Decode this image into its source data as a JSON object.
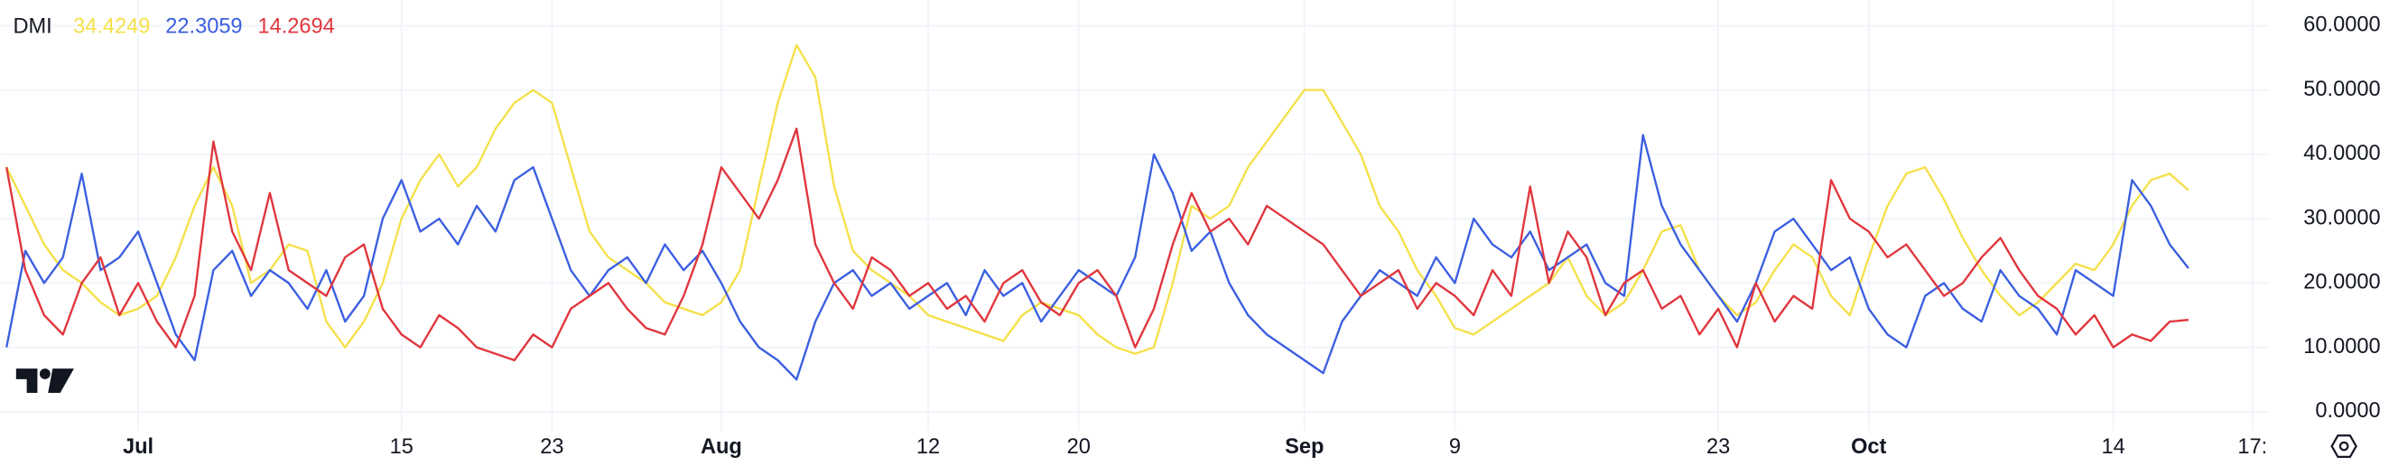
{
  "chart_data": {
    "type": "line",
    "title": "DMI",
    "x": [
      -7,
      -6,
      -5,
      -4,
      -3,
      -2,
      -1,
      0,
      1,
      2,
      3,
      4,
      5,
      6,
      7,
      8,
      9,
      10,
      11,
      12,
      13,
      14,
      15,
      16,
      17,
      18,
      19,
      20,
      21,
      22,
      23,
      24,
      25,
      26,
      27,
      28,
      29,
      30,
      31,
      32,
      33,
      34,
      35,
      36,
      37,
      38,
      39,
      40,
      41,
      42,
      43,
      44,
      45,
      46,
      47,
      48,
      49,
      50,
      51,
      52,
      53,
      54,
      55,
      56,
      57,
      58,
      59,
      60,
      61,
      62,
      63,
      64,
      65,
      66,
      67,
      68,
      69,
      70,
      71,
      72,
      73,
      74,
      75,
      76,
      77,
      78,
      79,
      80,
      81,
      82,
      83,
      84,
      85,
      86,
      87,
      88,
      89,
      90,
      91,
      92,
      93,
      94,
      95,
      96,
      97,
      98,
      99,
      100,
      101,
      102,
      103,
      104,
      105,
      106,
      107,
      108,
      109
    ],
    "series": [
      {
        "color": "#f5e04a",
        "values": [
          38,
          32,
          26,
          22,
          20,
          17,
          15,
          16,
          18,
          24,
          32,
          38,
          32,
          20,
          22,
          26,
          25,
          14,
          10,
          14,
          20,
          30,
          36,
          40,
          35,
          38,
          44,
          48,
          50,
          48,
          38,
          28,
          24,
          22,
          20,
          17,
          16,
          15,
          17,
          22,
          35,
          48,
          57,
          52,
          35,
          25,
          22,
          20,
          18,
          15,
          14,
          13,
          12,
          11,
          15,
          17,
          16,
          15,
          12,
          10,
          9,
          10,
          20,
          32,
          30,
          32,
          38,
          42,
          46,
          50,
          50,
          45,
          40,
          32,
          28,
          22,
          18,
          13,
          12,
          14,
          16,
          18,
          20,
          24,
          18,
          15,
          17,
          22,
          28,
          29,
          22,
          18,
          15,
          17,
          22,
          26,
          24,
          18,
          15,
          24,
          32,
          37,
          38,
          33,
          27,
          22,
          18,
          15,
          17,
          20,
          23,
          22,
          26,
          32,
          36,
          37,
          34.4249
        ]
      },
      {
        "color": "#3b5fe0",
        "values": [
          10,
          25,
          20,
          24,
          37,
          22,
          24,
          28,
          20,
          12,
          8,
          22,
          25,
          18,
          22,
          20,
          16,
          22,
          14,
          18,
          30,
          36,
          28,
          30,
          26,
          32,
          28,
          36,
          38,
          30,
          22,
          18,
          22,
          24,
          20,
          26,
          22,
          25,
          20,
          14,
          10,
          8,
          5,
          14,
          20,
          22,
          18,
          20,
          16,
          18,
          20,
          15,
          22,
          18,
          20,
          14,
          18,
          22,
          20,
          18,
          24,
          40,
          34,
          25,
          28,
          20,
          15,
          12,
          10,
          8,
          6,
          14,
          18,
          22,
          20,
          18,
          24,
          20,
          30,
          26,
          24,
          28,
          22,
          24,
          26,
          20,
          18,
          43,
          32,
          26,
          22,
          18,
          14,
          20,
          28,
          30,
          26,
          22,
          24,
          16,
          12,
          10,
          18,
          20,
          16,
          14,
          22,
          18,
          16,
          12,
          22,
          20,
          18,
          36,
          32,
          26,
          22.3059
        ]
      },
      {
        "color": "#e0363d",
        "values": [
          38,
          22,
          15,
          12,
          20,
          24,
          15,
          20,
          14,
          10,
          18,
          42,
          28,
          22,
          34,
          22,
          20,
          18,
          24,
          26,
          16,
          12,
          10,
          15,
          13,
          10,
          9,
          8,
          12,
          10,
          16,
          18,
          20,
          16,
          13,
          12,
          18,
          26,
          38,
          34,
          30,
          36,
          44,
          26,
          20,
          16,
          24,
          22,
          18,
          20,
          16,
          18,
          14,
          20,
          22,
          17,
          15,
          20,
          22,
          18,
          10,
          16,
          26,
          34,
          28,
          30,
          26,
          32,
          30,
          28,
          26,
          22,
          18,
          20,
          22,
          16,
          20,
          18,
          15,
          22,
          18,
          35,
          20,
          28,
          24,
          15,
          20,
          22,
          16,
          18,
          12,
          16,
          10,
          20,
          14,
          18,
          16,
          36,
          30,
          28,
          24,
          26,
          22,
          18,
          20,
          24,
          27,
          22,
          18,
          16,
          12,
          15,
          10,
          12,
          11,
          14,
          14.2694
        ]
      }
    ],
    "xlim": [
      -7.3,
      113.3
    ],
    "xticks": [
      {
        "value": 0,
        "label": "Jul"
      },
      {
        "value": 14,
        "label": "15"
      },
      {
        "value": 22,
        "label": "23"
      },
      {
        "value": 31,
        "label": "Aug"
      },
      {
        "value": 42,
        "label": "12"
      },
      {
        "value": 50,
        "label": "20"
      },
      {
        "value": 62,
        "label": "Sep"
      },
      {
        "value": 70,
        "label": "9"
      },
      {
        "value": 84,
        "label": "23"
      },
      {
        "value": 92,
        "label": "Oct"
      },
      {
        "value": 105,
        "label": "14"
      },
      {
        "value": 112.4,
        "label": "17:"
      }
    ],
    "ylim": [
      -3,
      64
    ],
    "yticks": [
      {
        "value": 0,
        "label": "0.0000"
      },
      {
        "value": 10,
        "label": "10.0000"
      },
      {
        "value": 20,
        "label": "20.0000"
      },
      {
        "value": 30,
        "label": "30.0000"
      },
      {
        "value": 40,
        "label": "40.0000"
      },
      {
        "value": 50,
        "label": "50.0000"
      },
      {
        "value": 60,
        "label": "60.0000"
      }
    ],
    "grid": true
  }
}
